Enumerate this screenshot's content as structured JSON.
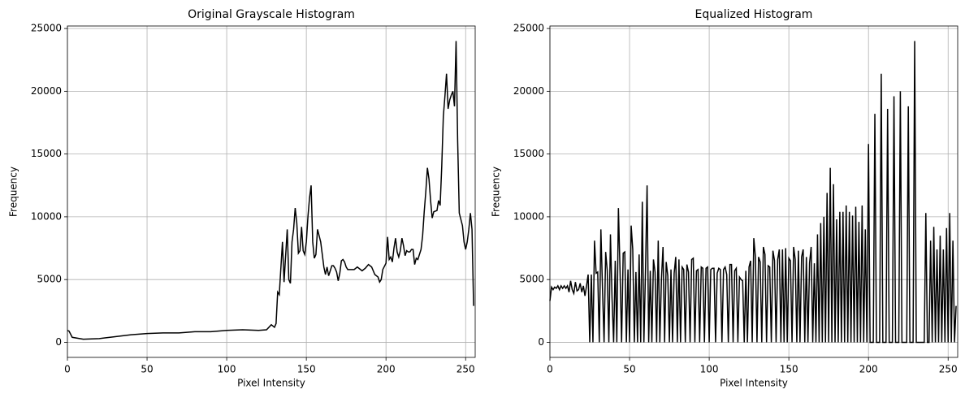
{
  "chart_data": [
    {
      "type": "line",
      "title": "Original Grayscale Histogram",
      "xlabel": "Pixel Intensity",
      "ylabel": "Frequency",
      "color": "#000000",
      "grid": true,
      "xlim": [
        0,
        256
      ],
      "ylim": [
        -1200,
        25200
      ],
      "xticks": [
        0,
        50,
        100,
        150,
        200,
        250
      ],
      "yticks": [
        0,
        5000,
        10000,
        15000,
        20000,
        25000
      ],
      "x": [
        0,
        1,
        3,
        10,
        20,
        30,
        40,
        50,
        60,
        70,
        80,
        90,
        100,
        110,
        120,
        125,
        128,
        130,
        131,
        132,
        133,
        135,
        136,
        138,
        139,
        140,
        141,
        142,
        143,
        144,
        145,
        146,
        147,
        148,
        149,
        150,
        151,
        152,
        153,
        154,
        155,
        156,
        157,
        158,
        159,
        160,
        161,
        162,
        163,
        164,
        165,
        166,
        167,
        168,
        169,
        170,
        171,
        172,
        173,
        174,
        175,
        176,
        180,
        182,
        185,
        187,
        189,
        191,
        193,
        195,
        196,
        197,
        198,
        200,
        201,
        202,
        203,
        204,
        205,
        206,
        207,
        208,
        209,
        210,
        211,
        212,
        213,
        214,
        215,
        216,
        217,
        218,
        219,
        220,
        222,
        223,
        224,
        225,
        226,
        227,
        228,
        229,
        230,
        232,
        233,
        234,
        235,
        236,
        237,
        238,
        239,
        240,
        241,
        242,
        243,
        244,
        245,
        246,
        247,
        248,
        249,
        250,
        251,
        252,
        253,
        254,
        255
      ],
      "values": [
        950,
        900,
        400,
        250,
        300,
        450,
        600,
        700,
        750,
        750,
        850,
        850,
        950,
        1000,
        950,
        1000,
        1400,
        1200,
        1500,
        4000,
        3800,
        8000,
        4800,
        9000,
        5000,
        4700,
        8000,
        9000,
        10700,
        9500,
        7100,
        7300,
        9200,
        7300,
        7000,
        8000,
        10000,
        11500,
        12500,
        8000,
        6700,
        7000,
        9000,
        8500,
        8000,
        7000,
        6000,
        5400,
        6000,
        5300,
        5700,
        6100,
        6100,
        5900,
        5600,
        4900,
        5500,
        6500,
        6600,
        6400,
        6000,
        5800,
        5800,
        6000,
        5700,
        5900,
        6200,
        6000,
        5400,
        5200,
        4800,
        5000,
        5800,
        6300,
        8400,
        6600,
        6800,
        6400,
        7500,
        8300,
        7200,
        6800,
        7300,
        8300,
        7700,
        6900,
        7300,
        7200,
        7200,
        7400,
        7400,
        6200,
        6700,
        6600,
        7400,
        8500,
        10400,
        12000,
        13900,
        13000,
        11300,
        9900,
        10400,
        10500,
        11300,
        10900,
        14000,
        18000,
        19600,
        21400,
        18600,
        19300,
        19700,
        20000,
        18800,
        24000,
        16000,
        10300,
        9800,
        9300,
        8000,
        7400,
        8000,
        9000,
        10300,
        9000,
        2900
      ]
    },
    {
      "type": "line",
      "title": "Equalized Histogram",
      "xlabel": "Pixel Intensity",
      "ylabel": "Frequency",
      "color": "#000000",
      "grid": true,
      "xlim": [
        0,
        256
      ],
      "ylim": [
        -1200,
        25200
      ],
      "xticks": [
        0,
        50,
        100,
        150,
        200,
        250
      ],
      "yticks": [
        0,
        5000,
        10000,
        15000,
        20000,
        25000
      ],
      "x": [
        0,
        1,
        2,
        3,
        4,
        5,
        6,
        7,
        8,
        9,
        10,
        11,
        12,
        13,
        14,
        15,
        16,
        17,
        18,
        19,
        20,
        21,
        22,
        23,
        24,
        25,
        26,
        27,
        28,
        29,
        30,
        31,
        32,
        33,
        34,
        35,
        36,
        37,
        38,
        39,
        40,
        41,
        42,
        43,
        44,
        45,
        46,
        47,
        48,
        49,
        50,
        51,
        52,
        53,
        54,
        55,
        56,
        57,
        58,
        59,
        60,
        61,
        62,
        63,
        64,
        65,
        66,
        67,
        68,
        69,
        70,
        71,
        72,
        73,
        74,
        75,
        76,
        77,
        78,
        79,
        80,
        81,
        82,
        83,
        84,
        85,
        86,
        87,
        88,
        89,
        90,
        91,
        92,
        93,
        94,
        95,
        96,
        97,
        98,
        99,
        100,
        101,
        102,
        103,
        104,
        105,
        106,
        107,
        108,
        109,
        110,
        111,
        112,
        113,
        114,
        115,
        116,
        117,
        118,
        119,
        120,
        121,
        122,
        123,
        124,
        125,
        126,
        127,
        128,
        129,
        130,
        131,
        132,
        133,
        134,
        135,
        136,
        137,
        138,
        139,
        140,
        141,
        142,
        143,
        144,
        145,
        146,
        147,
        148,
        149,
        150,
        151,
        152,
        153,
        154,
        155,
        156,
        157,
        158,
        159,
        160,
        161,
        162,
        163,
        164,
        165,
        166,
        167,
        168,
        169,
        170,
        171,
        172,
        173,
        174,
        175,
        176,
        177,
        178,
        179,
        180,
        181,
        182,
        183,
        184,
        185,
        186,
        187,
        188,
        189,
        190,
        191,
        192,
        193,
        194,
        195,
        196,
        197,
        198,
        199,
        200,
        201,
        202,
        203,
        204,
        205,
        206,
        207,
        208,
        209,
        210,
        211,
        212,
        213,
        214,
        215,
        216,
        217,
        218,
        219,
        220,
        221,
        222,
        223,
        224,
        225,
        226,
        227,
        228,
        229,
        230,
        231,
        232,
        233,
        234,
        235,
        236,
        237,
        238,
        239,
        240,
        241,
        242,
        243,
        244,
        245,
        246,
        247,
        248,
        249,
        250,
        251,
        252,
        253,
        254,
        255
      ],
      "values": [
        3300,
        4400,
        4200,
        4400,
        4300,
        4500,
        4200,
        4500,
        4300,
        4500,
        4300,
        4500,
        4000,
        4900,
        4200,
        3900,
        4800,
        4100,
        4200,
        4700,
        4000,
        4500,
        3700,
        4500,
        5400,
        0,
        5400,
        0,
        8100,
        5500,
        5600,
        0,
        9000,
        4300,
        0,
        7200,
        5700,
        0,
        8600,
        3500,
        0,
        6500,
        0,
        10700,
        5800,
        0,
        7100,
        7200,
        0,
        5800,
        0,
        9300,
        7400,
        0,
        5600,
        0,
        7000,
        0,
        11200,
        0,
        5700,
        12500,
        0,
        5700,
        0,
        6600,
        5600,
        0,
        8100,
        0,
        5000,
        7600,
        0,
        6400,
        5300,
        0,
        5800,
        0,
        5500,
        6800,
        0,
        6600,
        0,
        6000,
        5800,
        0,
        6200,
        5600,
        0,
        6600,
        6700,
        0,
        5700,
        5800,
        0,
        6000,
        5900,
        0,
        5900,
        6000,
        0,
        5800,
        5900,
        5900,
        0,
        5500,
        5900,
        5800,
        0,
        5800,
        6000,
        5400,
        0,
        6200,
        6200,
        0,
        5700,
        5900,
        0,
        5200,
        5000,
        4900,
        0,
        5700,
        0,
        6000,
        6500,
        0,
        8300,
        6800,
        0,
        6800,
        6400,
        0,
        7600,
        7000,
        0,
        6100,
        6000,
        0,
        7300,
        6500,
        0,
        6600,
        7400,
        0,
        7400,
        0,
        7500,
        0,
        6700,
        6500,
        0,
        7600,
        6600,
        0,
        7300,
        0,
        6800,
        7400,
        0,
        6800,
        0,
        6300,
        7600,
        0,
        6300,
        0,
        8600,
        0,
        9500,
        0,
        10000,
        0,
        11900,
        0,
        13900,
        0,
        12600,
        0,
        9800,
        0,
        10400,
        0,
        10400,
        0,
        10900,
        0,
        10400,
        0,
        10100,
        0,
        10800,
        0,
        9600,
        0,
        10900,
        0,
        9000,
        0,
        15800,
        0,
        0,
        0,
        18200,
        0,
        0,
        0,
        21400,
        0,
        0,
        0,
        18600,
        0,
        0,
        0,
        19600,
        0,
        0,
        0,
        20000,
        0,
        0,
        0,
        0,
        18800,
        0,
        0,
        0,
        24000,
        0,
        0,
        0,
        0,
        0,
        0,
        10300,
        0,
        0,
        8100,
        0,
        9200,
        0,
        7400,
        0,
        8500,
        0,
        7400,
        0,
        9100,
        0,
        10300,
        0,
        8100,
        0,
        2900
      ]
    }
  ]
}
